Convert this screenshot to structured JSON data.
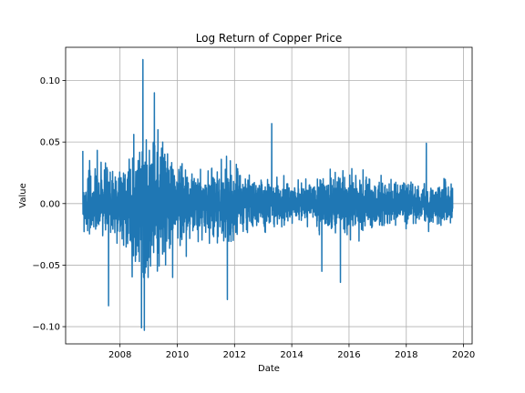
{
  "chart_data": {
    "type": "line",
    "title": "Log Return of Copper Price",
    "xlabel": "Date",
    "ylabel": "Value",
    "xlim": [
      2006.1,
      2020.3
    ],
    "ylim": [
      -0.114,
      0.127
    ],
    "x_ticks": [
      2008,
      2010,
      2012,
      2014,
      2016,
      2018,
      2020
    ],
    "x_tick_labels": [
      "2008",
      "2010",
      "2012",
      "2014",
      "2016",
      "2018",
      "2020"
    ],
    "y_ticks": [
      -0.1,
      -0.05,
      0.0,
      0.05,
      0.1
    ],
    "y_tick_labels": [
      "−0.10",
      "−0.05",
      "0.00",
      "0.05",
      "0.10"
    ],
    "grid": true,
    "legend": "none",
    "series": [
      {
        "color": "#1f77b4",
        "date_range": [
          "2006-09",
          "2019-08"
        ],
        "key_points": [
          {
            "x": 2008.8,
            "y": 0.117
          },
          {
            "x": 2008.75,
            "y": -0.101
          },
          {
            "x": 2008.85,
            "y": -0.103
          },
          {
            "x": 2007.6,
            "y": -0.083
          },
          {
            "x": 2011.75,
            "y": -0.078
          },
          {
            "x": 2015.7,
            "y": -0.064
          },
          {
            "x": 2013.3,
            "y": 0.065
          },
          {
            "x": 2009.2,
            "y": 0.09
          },
          {
            "x": 2018.7,
            "y": 0.049
          },
          {
            "x": 2015.05,
            "y": -0.055
          }
        ],
        "volatility_profile": [
          {
            "x": 2006.7,
            "amp": 0.02
          },
          {
            "x": 2007.5,
            "amp": 0.026
          },
          {
            "x": 2008.3,
            "amp": 0.026
          },
          {
            "x": 2008.9,
            "amp": 0.05
          },
          {
            "x": 2009.5,
            "amp": 0.04
          },
          {
            "x": 2010.2,
            "amp": 0.025
          },
          {
            "x": 2011.0,
            "amp": 0.022
          },
          {
            "x": 2011.8,
            "amp": 0.025
          },
          {
            "x": 2012.5,
            "amp": 0.017
          },
          {
            "x": 2013.5,
            "amp": 0.015
          },
          {
            "x": 2014.5,
            "amp": 0.012
          },
          {
            "x": 2015.5,
            "amp": 0.02
          },
          {
            "x": 2016.5,
            "amp": 0.017
          },
          {
            "x": 2017.5,
            "amp": 0.015
          },
          {
            "x": 2018.5,
            "amp": 0.014
          },
          {
            "x": 2019.6,
            "amp": 0.013
          }
        ]
      }
    ]
  }
}
